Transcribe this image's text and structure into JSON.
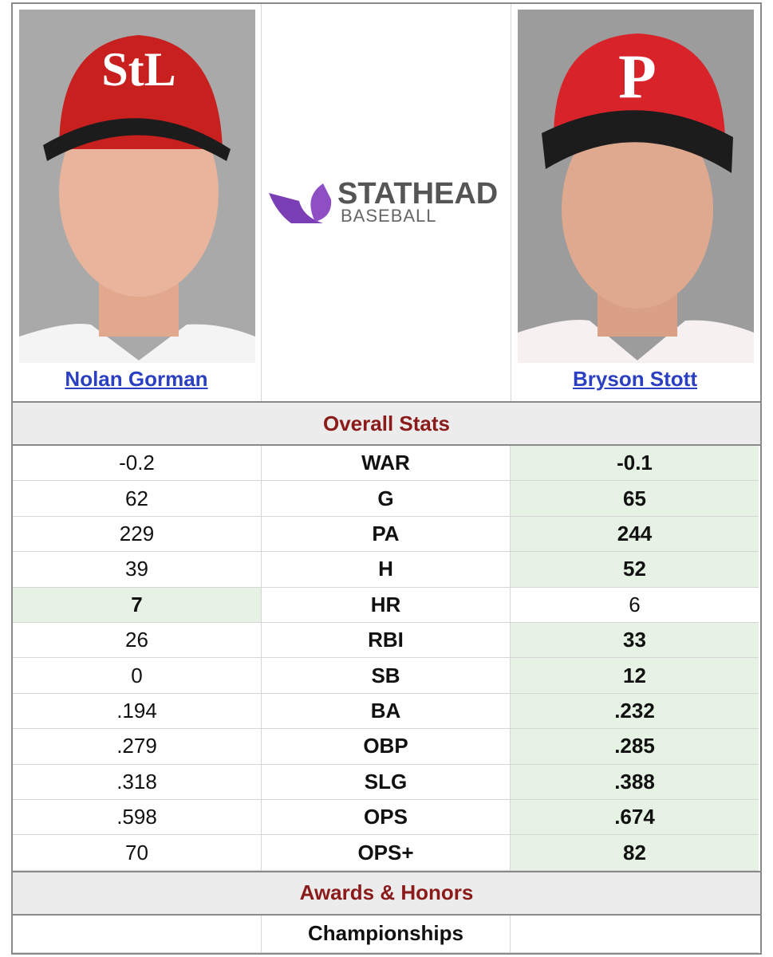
{
  "players": [
    {
      "name": "Nolan Gorman"
    },
    {
      "name": "Bryson Stott"
    }
  ],
  "logo": {
    "brand": "STATHEAD",
    "sport": "BASEBALL"
  },
  "sections": [
    {
      "title": "Overall Stats",
      "rows": [
        {
          "stat": "WAR",
          "left": "-0.2",
          "right": "-0.1",
          "leader": "right"
        },
        {
          "stat": "G",
          "left": "62",
          "right": "65",
          "leader": "right"
        },
        {
          "stat": "PA",
          "left": "229",
          "right": "244",
          "leader": "right"
        },
        {
          "stat": "H",
          "left": "39",
          "right": "52",
          "leader": "right"
        },
        {
          "stat": "HR",
          "left": "7",
          "right": "6",
          "leader": "left"
        },
        {
          "stat": "RBI",
          "left": "26",
          "right": "33",
          "leader": "right"
        },
        {
          "stat": "SB",
          "left": "0",
          "right": "12",
          "leader": "right"
        },
        {
          "stat": "BA",
          "left": ".194",
          "right": ".232",
          "leader": "right"
        },
        {
          "stat": "OBP",
          "left": ".279",
          "right": ".285",
          "leader": "right"
        },
        {
          "stat": "SLG",
          "left": ".318",
          "right": ".388",
          "leader": "right"
        },
        {
          "stat": "OPS",
          "left": ".598",
          "right": ".674",
          "leader": "right"
        },
        {
          "stat": "OPS+",
          "left": "70",
          "right": "82",
          "leader": "right"
        }
      ]
    },
    {
      "title": "Awards & Honors",
      "rows": [
        {
          "stat": "Championships"
        }
      ]
    }
  ]
}
